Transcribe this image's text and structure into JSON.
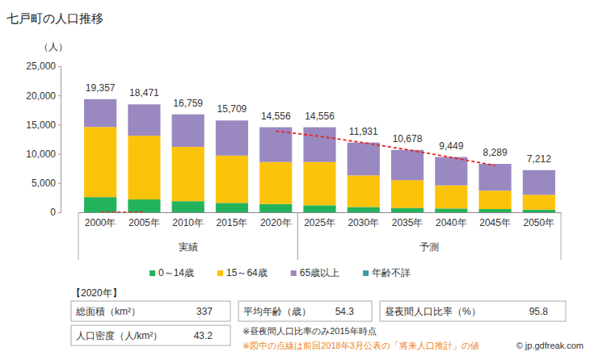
{
  "chart_data": {
    "type": "bar",
    "title": "七戸町の人口推移",
    "y_label": "（人）",
    "stacked": true,
    "grid": false,
    "categories": [
      "2000年",
      "2005年",
      "2010年",
      "2015年",
      "2020年",
      "2025年",
      "2030年",
      "2035年",
      "2040年",
      "2045年",
      "2050年"
    ],
    "category_groups": [
      {
        "label": "実績",
        "from": 0,
        "to": 4
      },
      {
        "label": "予測",
        "from": 5,
        "to": 10
      }
    ],
    "ylim": [
      0,
      25000
    ],
    "yticks": [
      0,
      {
        "value": 5000,
        "label": "5,000"
      },
      {
        "value": 10000,
        "label": "10,000"
      },
      {
        "value": 15000,
        "label": "15,000"
      },
      {
        "value": 20000,
        "label": "20,000"
      },
      {
        "value": 25000,
        "label": "25,000"
      }
    ],
    "series": [
      {
        "name": "0～14歳",
        "color": "#23b35c",
        "values": [
          2600,
          2200,
          1900,
          1600,
          1400,
          1200,
          900,
          750,
          650,
          550,
          450
        ]
      },
      {
        "name": "15～64歳",
        "color": "#fcc30b",
        "values": [
          12000,
          10900,
          9300,
          8100,
          7200,
          7400,
          5400,
          4750,
          3950,
          3150,
          2550
        ]
      },
      {
        "name": "65歳以上",
        "color": "#9a88c1",
        "values": [
          4757,
          5371,
          5559,
          6009,
          5956,
          5956,
          5631,
          5178,
          4849,
          4589,
          4212
        ]
      },
      {
        "name": "年齢不詳",
        "color": "#3a9ea8",
        "values": [
          0,
          0,
          0,
          0,
          0,
          0,
          0,
          0,
          0,
          0,
          0
        ]
      },
      {
        "type": "line",
        "color": "#e8201a",
        "line_style": "dashed",
        "values": [
          0,
          0,
          null,
          null,
          13900,
          13000,
          11900,
          10700,
          9400,
          8000,
          null
        ]
      }
    ],
    "totals": [
      19357,
      18471,
      16759,
      15709,
      14556,
      14556,
      11931,
      10678,
      9449,
      8289,
      7212
    ],
    "total_labels": [
      "19,357",
      "18,471",
      "16,759",
      "15,709",
      "14,556",
      "14,556",
      "11,931",
      "10,678",
      "9,449",
      "8,289",
      "7,212"
    ],
    "info": {
      "heading": "【2020年】",
      "items": [
        {
          "label": "総面積（km²）",
          "value": 337
        },
        {
          "label": "平均年齢（歳）",
          "value": 54.3
        },
        {
          "label": "昼夜間人口比率（%）",
          "value": 95.8
        },
        {
          "label": "人口密度（人/km²）",
          "value": 43.2
        }
      ],
      "notes": [
        "※昼夜間人口比率のみ2015年時点",
        "※図中の点線は前回2018年3月公表の「将来人口推計」の値"
      ],
      "credit": "© jp.gdfreak.com"
    }
  }
}
